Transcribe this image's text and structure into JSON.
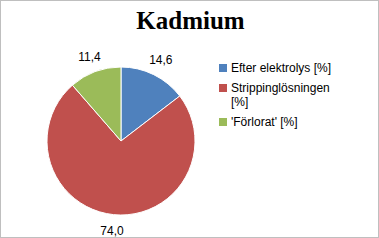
{
  "chart_data": {
    "type": "pie",
    "title": "Kadmium",
    "categories": [
      "Efter elektrolys [%]",
      "Strippinglösningen [%]",
      "'Förlorat' [%]"
    ],
    "values": [
      14.6,
      74.0,
      11.4
    ],
    "value_labels": [
      "14,6",
      "74,0",
      "11,4"
    ],
    "colors": [
      "#4f81bd",
      "#c0504d",
      "#9bbb59"
    ],
    "data_labels": true,
    "legend": "right"
  }
}
